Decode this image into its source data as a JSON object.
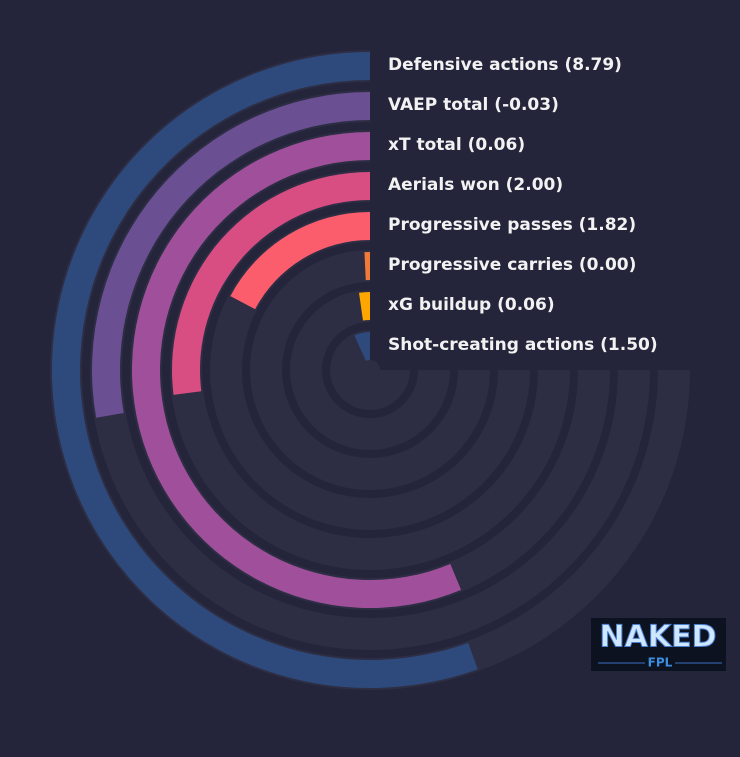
{
  "chart_data": {
    "type": "radial_bar",
    "categories": [
      "Defensive actions (8.79)",
      "VAEP total (-0.03)",
      "xT total (0.06)",
      "Aerials won (2.00)",
      "Progressive passes (1.82)",
      "Progressive carries (0.00)",
      "xG buildup (0.06)",
      "Shot-creating actions (1.50)"
    ],
    "values": [
      74,
      37,
      75,
      36,
      23,
      1,
      3,
      9
    ],
    "colors": [
      "#2e4a7d",
      "#6a4f93",
      "#a0509a",
      "#d84d82",
      "#fb5d6c",
      "#f07a3a",
      "#ffa600",
      "#2e4a7d"
    ],
    "ylim": [
      0,
      100
    ]
  },
  "logo": {
    "title": "NAKED",
    "subtitle": "FPL"
  }
}
